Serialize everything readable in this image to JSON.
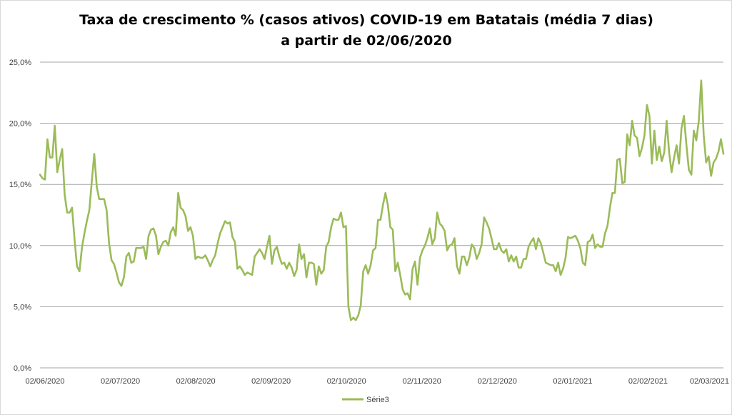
{
  "chart_data": {
    "type": "line",
    "title": [
      "Taxa de crescimento % (casos ativos) COVID-19 em Batatais (média 7 dias)",
      "a partir de 02/06/2020"
    ],
    "xlabel": "",
    "ylabel": "",
    "x_range": [
      "02/06/2020",
      "02/03/2021"
    ],
    "ylim": [
      0,
      25
    ],
    "y_ticks": [
      0,
      5,
      10,
      15,
      20,
      25
    ],
    "y_tick_labels": [
      "0,0%",
      "5,0%",
      "10,0%",
      "15,0%",
      "20,0%",
      "25,0%"
    ],
    "x_tick_labels": [
      "02/06/2020",
      "02/07/2020",
      "02/08/2020",
      "02/09/2020",
      "02/10/2020",
      "02/11/2020",
      "02/12/2020",
      "02/01/2021",
      "02/02/2021",
      "02/03/2021"
    ],
    "grid": "horizontal",
    "legend": "bottom",
    "colors": {
      "series": "#9bbb59",
      "grid": "#a6a6a6"
    },
    "series": [
      {
        "name": "Série3",
        "values": [
          15.8,
          15.5,
          15.4,
          18.7,
          17.2,
          17.2,
          19.8,
          16.0,
          17.0,
          17.9,
          14.2,
          12.7,
          12.7,
          13.1,
          10.5,
          8.3,
          7.9,
          9.8,
          11.0,
          12.0,
          12.9,
          15.3,
          17.5,
          14.8,
          13.8,
          13.8,
          13.8,
          12.9,
          10.2,
          8.8,
          8.5,
          7.8,
          7.0,
          6.7,
          7.4,
          9.1,
          9.4,
          8.6,
          8.7,
          9.8,
          9.8,
          9.8,
          9.9,
          8.9,
          10.8,
          11.3,
          11.4,
          10.8,
          9.3,
          9.9,
          10.3,
          10.4,
          10.0,
          11.1,
          11.5,
          10.8,
          14.3,
          13.1,
          12.9,
          12.4,
          11.2,
          11.5,
          10.8,
          8.9,
          9.1,
          9.0,
          9.0,
          9.2,
          8.8,
          8.3,
          8.8,
          9.2,
          10.2,
          11.0,
          11.5,
          12.0,
          11.8,
          11.9,
          10.7,
          10.3,
          8.1,
          8.3,
          8.0,
          7.6,
          7.8,
          7.7,
          7.6,
          9.1,
          9.4,
          9.7,
          9.4,
          8.9,
          9.9,
          10.8,
          8.5,
          9.6,
          9.9,
          9.1,
          8.5,
          8.6,
          8.1,
          8.6,
          8.2,
          7.5,
          8.0,
          10.1,
          8.9,
          9.3,
          7.4,
          8.6,
          8.6,
          8.5,
          6.8,
          8.3,
          7.7,
          8.0,
          9.9,
          10.3,
          11.5,
          12.2,
          12.1,
          12.1,
          12.7,
          11.5,
          11.6,
          5.0,
          3.9,
          4.1,
          3.9,
          4.3,
          5.1,
          7.9,
          8.4,
          7.7,
          8.4,
          9.6,
          9.8,
          12.1,
          12.1,
          13.3,
          14.3,
          13.3,
          11.5,
          11.3,
          7.9,
          8.6,
          7.6,
          6.4,
          6.0,
          6.1,
          5.6,
          8.1,
          8.7,
          6.8,
          9.0,
          9.6,
          10.0,
          10.6,
          11.4,
          10.1,
          10.6,
          12.7,
          11.8,
          11.6,
          11.2,
          9.6,
          10.0,
          10.1,
          10.6,
          8.3,
          7.7,
          9.1,
          9.1,
          8.4,
          9.0,
          10.1,
          9.8,
          8.9,
          9.4,
          10.1,
          12.3,
          11.9,
          11.4,
          10.6,
          9.7,
          9.7,
          10.2,
          9.6,
          9.4,
          9.7,
          8.7,
          9.2,
          8.7,
          9.1,
          8.2,
          8.2,
          8.9,
          8.9,
          9.9,
          10.3,
          10.6,
          9.7,
          10.6,
          10.2,
          9.4,
          8.6,
          8.5,
          8.4,
          8.4,
          7.9,
          8.6,
          7.6,
          8.1,
          9.0,
          10.7,
          10.6,
          10.7,
          10.8,
          10.4,
          9.8,
          8.6,
          8.4,
          10.3,
          10.4,
          10.9,
          9.8,
          10.1,
          9.9,
          9.9,
          11.0,
          11.6,
          13.1,
          14.3,
          14.3,
          17.0,
          17.1,
          15.1,
          15.2,
          19.1,
          18.2,
          20.2,
          19.0,
          18.8,
          17.3,
          18.0,
          19.0,
          21.5,
          20.6,
          16.7,
          19.4,
          17.0,
          18.1,
          16.9,
          17.6,
          20.2,
          17.6,
          16.0,
          17.2,
          18.2,
          16.7,
          19.6,
          20.6,
          18.2,
          16.2,
          15.8,
          19.4,
          18.6,
          20.2,
          23.5,
          19.0,
          16.8,
          17.3,
          15.7,
          16.8,
          17.1,
          17.7,
          18.7,
          17.5
        ]
      }
    ]
  }
}
